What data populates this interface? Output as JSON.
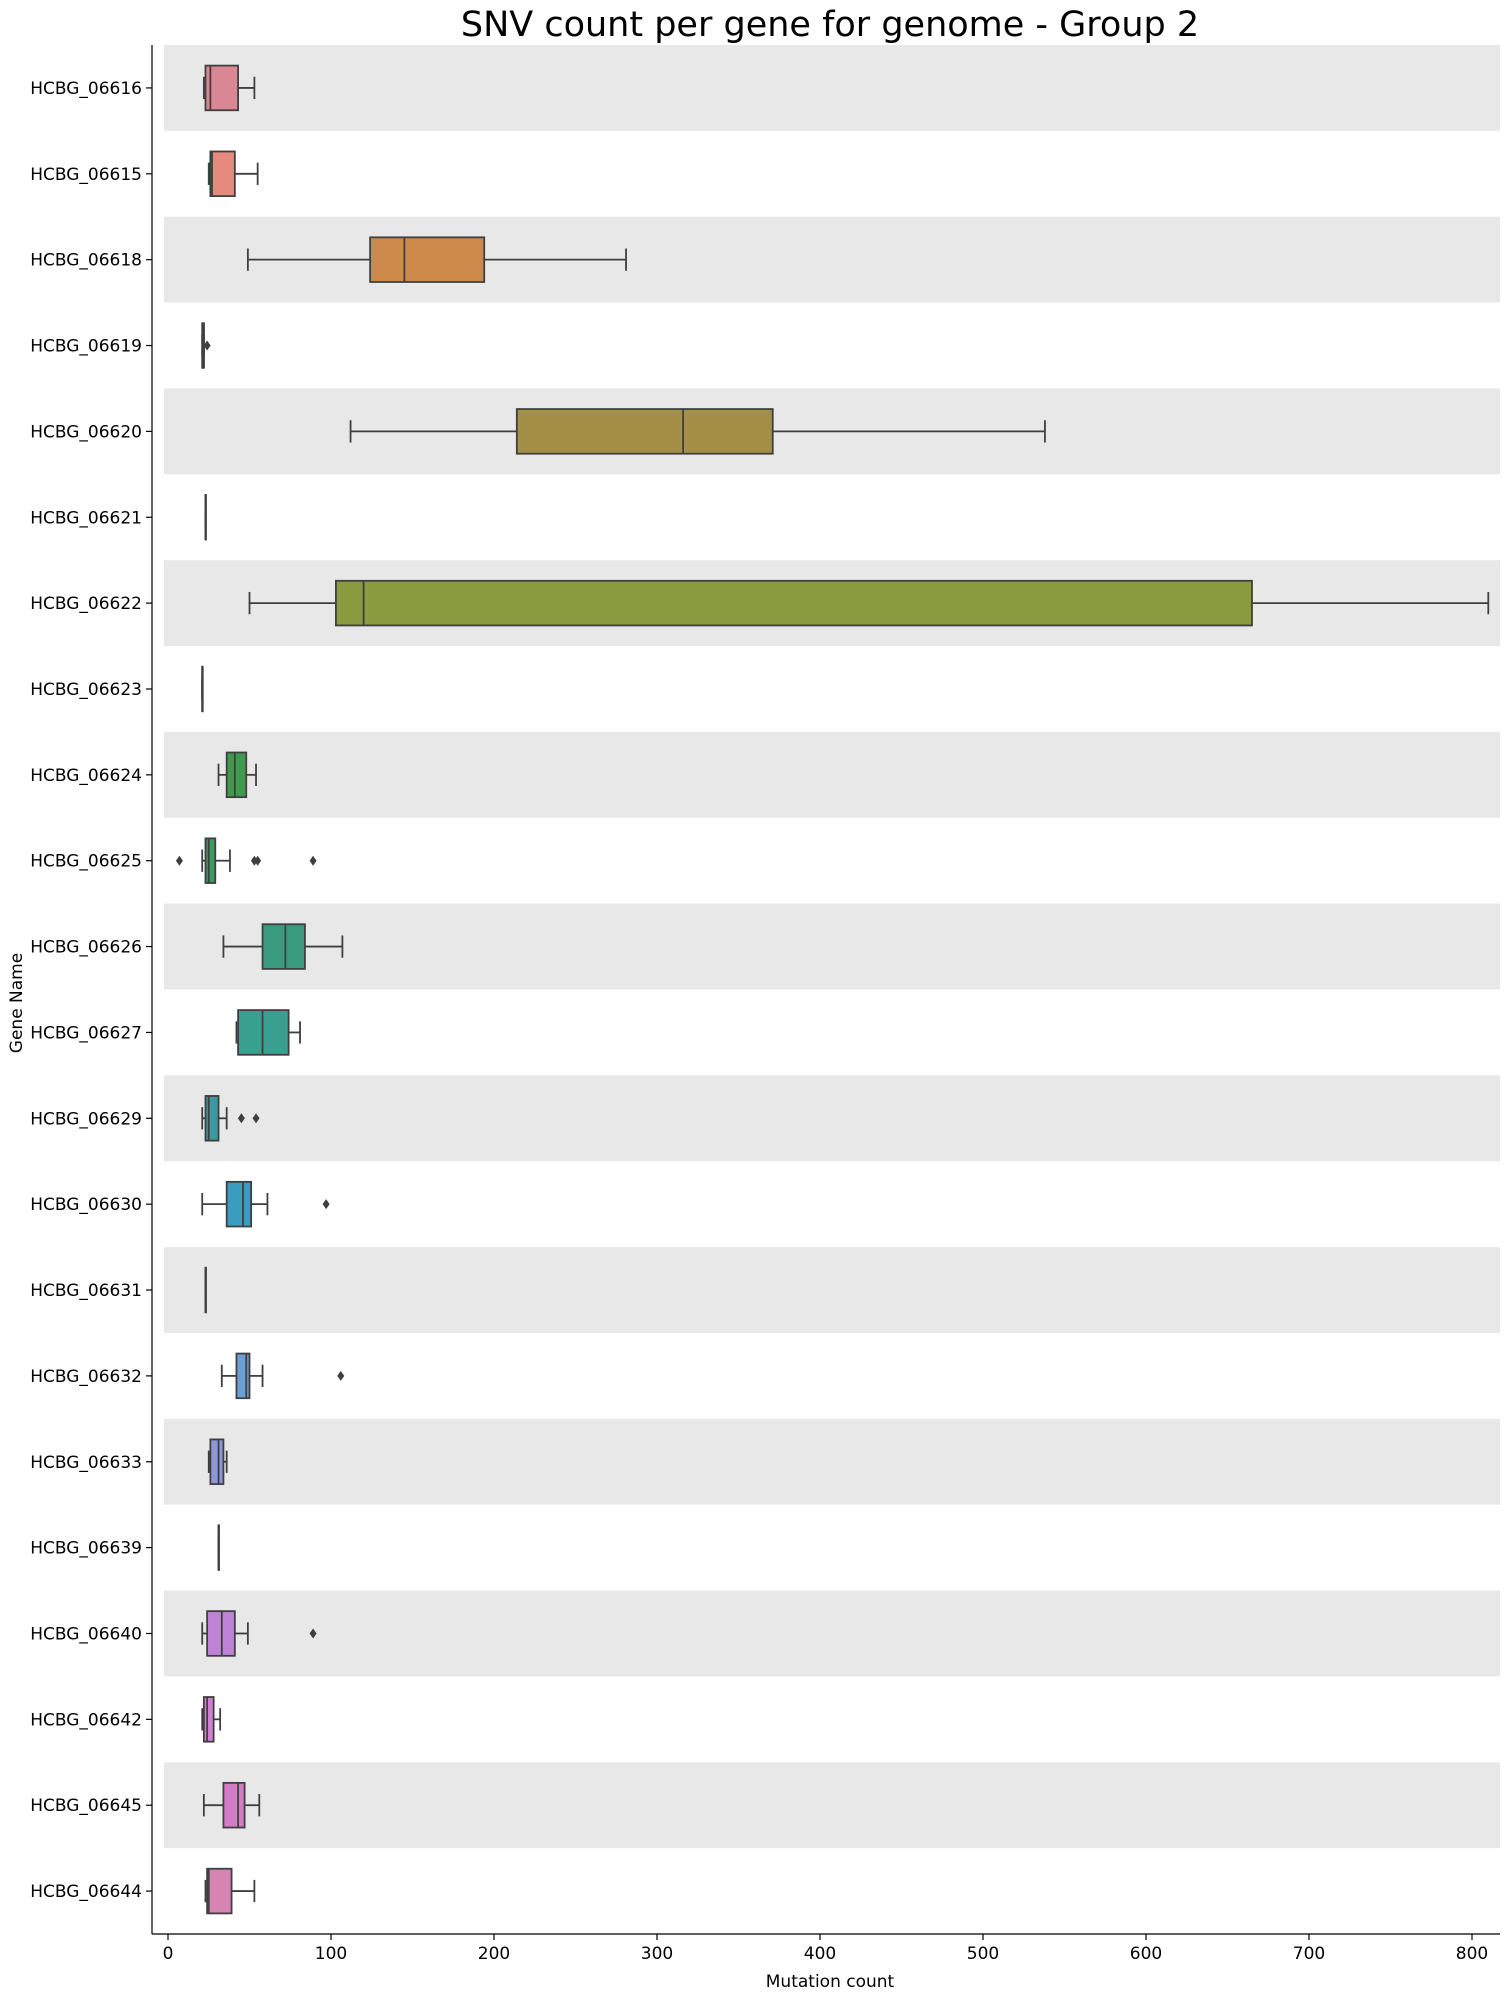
{
  "chart_data": {
    "type": "boxplot",
    "orientation": "horizontal",
    "title": "SNV count per gene for genome - Group 2",
    "xlabel": "Mutation count",
    "ylabel": "Gene Name",
    "xlim": [
      -5,
      820
    ],
    "xticks": [
      0,
      100,
      200,
      300,
      400,
      500,
      600,
      700,
      800
    ],
    "grid": false,
    "row_banding": true,
    "band_color": "#e8e8e8",
    "box_edge_color": "#3f3f3f",
    "genes": [
      {
        "name": "HCBG_06616",
        "color": "#d98794",
        "whislo": 22,
        "q1": 23,
        "med": 26,
        "q3": 43,
        "whishi": 53,
        "fliers": []
      },
      {
        "name": "HCBG_06615",
        "color": "#e58a7c",
        "whislo": 25,
        "q1": 26,
        "med": 27,
        "q3": 41,
        "whishi": 55,
        "fliers": []
      },
      {
        "name": "HCBG_06618",
        "color": "#cd8a4a",
        "whislo": 49,
        "q1": 124,
        "med": 145,
        "q3": 194,
        "whishi": 281,
        "fliers": []
      },
      {
        "name": "HCBG_06619",
        "color": "#bf9650",
        "whislo": 21,
        "q1": 21,
        "med": 22,
        "q3": 22,
        "whishi": 22,
        "fliers": [
          24
        ]
      },
      {
        "name": "HCBG_06620",
        "color": "#a38f46",
        "whislo": 112,
        "q1": 214,
        "med": 316,
        "q3": 371,
        "whishi": 538,
        "fliers": []
      },
      {
        "name": "HCBG_06621",
        "color": "#9b9a42",
        "whislo": 23,
        "q1": 23,
        "med": 23,
        "q3": 23,
        "whishi": 23,
        "fliers": []
      },
      {
        "name": "HCBG_06622",
        "color": "#8a9a3e",
        "whislo": 50,
        "q1": 103,
        "med": 120,
        "q3": 665,
        "whishi": 810,
        "fliers": []
      },
      {
        "name": "HCBG_06623",
        "color": "#6f9a43",
        "whislo": 21,
        "q1": 21,
        "med": 21,
        "q3": 21,
        "whishi": 21,
        "fliers": []
      },
      {
        "name": "HCBG_06624",
        "color": "#3f9a4c",
        "whislo": 31,
        "q1": 36,
        "med": 41,
        "q3": 48,
        "whishi": 54,
        "fliers": []
      },
      {
        "name": "HCBG_06625",
        "color": "#3d9a61",
        "whislo": 21,
        "q1": 23,
        "med": 25,
        "q3": 29,
        "whishi": 38,
        "fliers": [
          7,
          53,
          55,
          89
        ]
      },
      {
        "name": "HCBG_06626",
        "color": "#3a9a7d",
        "whislo": 34,
        "q1": 58,
        "med": 72,
        "q3": 84,
        "whishi": 107,
        "fliers": []
      },
      {
        "name": "HCBG_06627",
        "color": "#39a08f",
        "whislo": 42,
        "q1": 43,
        "med": 58,
        "q3": 74,
        "whishi": 81,
        "fliers": []
      },
      {
        "name": "HCBG_06629",
        "color": "#3a9aa0",
        "whislo": 21,
        "q1": 23,
        "med": 25,
        "q3": 31,
        "whishi": 36,
        "fliers": [
          45,
          54
        ]
      },
      {
        "name": "HCBG_06630",
        "color": "#3a9dbf",
        "whislo": 21,
        "q1": 36,
        "med": 46,
        "q3": 51,
        "whishi": 61,
        "fliers": [
          97
        ]
      },
      {
        "name": "HCBG_06631",
        "color": "#55a0cf",
        "whislo": 23,
        "q1": 23,
        "med": 23,
        "q3": 23,
        "whishi": 23,
        "fliers": []
      },
      {
        "name": "HCBG_06632",
        "color": "#6a9fd8",
        "whislo": 33,
        "q1": 42,
        "med": 48,
        "q3": 50,
        "whishi": 58,
        "fliers": [
          106
        ]
      },
      {
        "name": "HCBG_06633",
        "color": "#8e98d8",
        "whislo": 25,
        "q1": 26,
        "med": 31,
        "q3": 34,
        "whishi": 36,
        "fliers": []
      },
      {
        "name": "HCBG_06639",
        "color": "#a690d6",
        "whislo": 31,
        "q1": 31,
        "med": 31,
        "q3": 31,
        "whishi": 31,
        "fliers": []
      },
      {
        "name": "HCBG_06640",
        "color": "#bf83d6",
        "whislo": 21,
        "q1": 24,
        "med": 33,
        "q3": 41,
        "whishi": 49,
        "fliers": [
          89
        ]
      },
      {
        "name": "HCBG_06642",
        "color": "#d17fd3",
        "whislo": 21,
        "q1": 22,
        "med": 24,
        "q3": 28,
        "whishi": 32,
        "fliers": []
      },
      {
        "name": "HCBG_06645",
        "color": "#d37bc6",
        "whislo": 22,
        "q1": 34,
        "med": 43,
        "q3": 47,
        "whishi": 56,
        "fliers": []
      },
      {
        "name": "HCBG_06644",
        "color": "#d884b2",
        "whislo": 23,
        "q1": 24,
        "med": 25,
        "q3": 39,
        "whishi": 53,
        "fliers": []
      }
    ]
  }
}
